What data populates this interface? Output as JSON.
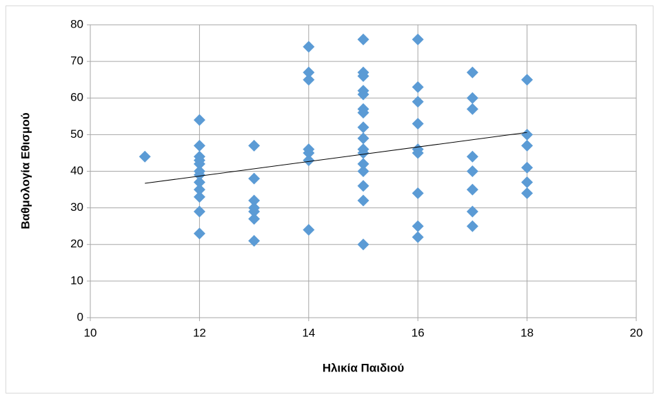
{
  "chart_data": {
    "type": "scatter",
    "x_label": "Ηλικία Παιδιού",
    "y_label": "Βαθμολογία Εθισμού",
    "x": [
      11,
      12,
      12,
      12,
      12,
      12,
      12,
      12,
      12,
      12,
      12,
      12,
      12,
      13,
      13,
      13,
      13,
      13,
      13,
      13,
      14,
      14,
      14,
      14,
      14,
      14,
      14,
      15,
      15,
      15,
      15,
      15,
      15,
      15,
      15,
      15,
      15,
      15,
      15,
      15,
      15,
      15,
      15,
      16,
      16,
      16,
      16,
      16,
      16,
      16,
      16,
      16,
      17,
      17,
      17,
      17,
      17,
      17,
      17,
      17,
      18,
      18,
      18,
      18,
      18,
      18
    ],
    "y": [
      44,
      54,
      47,
      44,
      43,
      42,
      40,
      39,
      37,
      35,
      33,
      29,
      23,
      47,
      38,
      32,
      30,
      29,
      27,
      21,
      74,
      67,
      65,
      46,
      45,
      43,
      24,
      76,
      67,
      66,
      62,
      61,
      57,
      56,
      52,
      49,
      46,
      45,
      42,
      40,
      36,
      32,
      20,
      76,
      63,
      59,
      53,
      46,
      45,
      34,
      25,
      22,
      67,
      60,
      57,
      44,
      40,
      35,
      29,
      25,
      65,
      50,
      47,
      41,
      37,
      34
    ],
    "color": "#5b9bd5",
    "trendline": {
      "x": [
        11,
        18
      ],
      "y": [
        36.7,
        50.6
      ],
      "color": "#000000"
    },
    "xlim": [
      10,
      20
    ],
    "xticks": [
      10,
      12,
      14,
      16,
      18,
      20
    ],
    "ylim": [
      0,
      80
    ],
    "yticks": [
      0,
      10,
      20,
      30,
      40,
      50,
      60,
      70,
      80
    ],
    "grid": true
  }
}
